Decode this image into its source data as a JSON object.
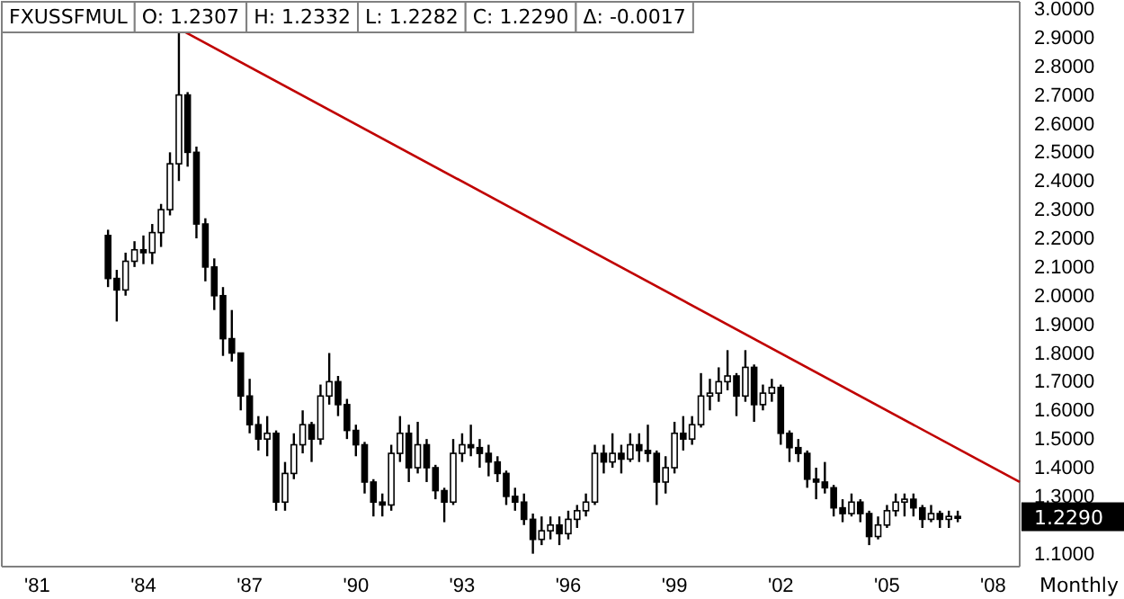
{
  "chart_data": {
    "type": "candlestick",
    "title": "FXUSSFMUL",
    "annotations": [
      "O: 1.2307",
      "H: 1.2332",
      "L: 1.2282",
      "C: 1.2290",
      "Δ: -0.0017",
      "Monthly",
      "1.2290"
    ],
    "xlim": [
      "1980-01",
      "2008-10"
    ],
    "xticks": [
      {
        "value": "1981-01",
        "label": "'81"
      },
      {
        "value": "1984-01",
        "label": "'84"
      },
      {
        "value": "1987-01",
        "label": "'87"
      },
      {
        "value": "1990-01",
        "label": "'90"
      },
      {
        "value": "1993-01",
        "label": "'93"
      },
      {
        "value": "1996-01",
        "label": "'96"
      },
      {
        "value": "1999-01",
        "label": "'99"
      },
      {
        "value": "2002-01",
        "label": "'02"
      },
      {
        "value": "2005-01",
        "label": "'05"
      },
      {
        "value": "2008-01",
        "label": "'08"
      }
    ],
    "ylim": [
      1.055,
      3.025
    ],
    "yticks": [
      {
        "value": 1.1,
        "label": "1.1000"
      },
      {
        "value": 1.3,
        "label": "1.3000"
      },
      {
        "value": 1.4,
        "label": "1.4000"
      },
      {
        "value": 1.5,
        "label": "1.5000"
      },
      {
        "value": 1.6,
        "label": "1.6000"
      },
      {
        "value": 1.7,
        "label": "1.7000"
      },
      {
        "value": 1.8,
        "label": "1.8000"
      },
      {
        "value": 1.9,
        "label": "1.9000"
      },
      {
        "value": 2.0,
        "label": "2.0000"
      },
      {
        "value": 2.1,
        "label": "2.1000"
      },
      {
        "value": 2.2,
        "label": "2.2000"
      },
      {
        "value": 2.3,
        "label": "2.3000"
      },
      {
        "value": 2.4,
        "label": "2.4000"
      },
      {
        "value": 2.5,
        "label": "2.5000"
      },
      {
        "value": 2.6,
        "label": "2.6000"
      },
      {
        "value": 2.7,
        "label": "2.7000"
      },
      {
        "value": 2.8,
        "label": "2.8000"
      },
      {
        "value": 2.9,
        "label": "2.9000"
      },
      {
        "value": 3.0,
        "label": "3.0000"
      }
    ],
    "grid": false,
    "series": [
      {
        "type": "line",
        "color": "#c00000",
        "x": [
          "1985-03",
          "2008-10"
        ],
        "values": [
          2.92,
          1.35
        ]
      },
      {
        "color": "#000000",
        "x": [
          "1983-01",
          "1983-04",
          "1983-07",
          "1983-10",
          "1984-01",
          "1984-04",
          "1984-07",
          "1984-10",
          "1985-01",
          "1985-04",
          "1985-07",
          "1985-10",
          "1986-01",
          "1986-04",
          "1986-07",
          "1986-10",
          "1987-01",
          "1987-04",
          "1987-07",
          "1987-10",
          "1988-01",
          "1988-04",
          "1988-07",
          "1988-10",
          "1989-01",
          "1989-04",
          "1989-07",
          "1989-10",
          "1990-01",
          "1990-04",
          "1990-07",
          "1990-10",
          "1991-01",
          "1991-04",
          "1991-07",
          "1991-10",
          "1992-01",
          "1992-04",
          "1992-07",
          "1992-10",
          "1993-01",
          "1993-04",
          "1993-07",
          "1993-10",
          "1994-01",
          "1994-04",
          "1994-07",
          "1994-10",
          "1995-01",
          "1995-04",
          "1995-07",
          "1995-10",
          "1996-01",
          "1996-04",
          "1996-07",
          "1996-10",
          "1997-01",
          "1997-04",
          "1997-07",
          "1997-10",
          "1998-01",
          "1998-04",
          "1998-07",
          "1998-10",
          "1999-01",
          "1999-04",
          "1999-07",
          "1999-10",
          "2000-01",
          "2000-04",
          "2000-07",
          "2000-10",
          "2001-01",
          "2001-04",
          "2001-07",
          "2001-10",
          "2002-01",
          "2002-04",
          "2002-07",
          "2002-10",
          "2003-01",
          "2003-04",
          "2003-07",
          "2003-10",
          "2004-01",
          "2004-04",
          "2004-07",
          "2004-10",
          "2005-01",
          "2005-04",
          "2005-07",
          "2005-10",
          "2006-01",
          "2006-04",
          "2006-07",
          "2006-10",
          "2007-01"
        ],
        "ohlc": [
          [
            2.21,
            2.23,
            2.03,
            2.06
          ],
          [
            2.06,
            2.09,
            1.91,
            2.02
          ],
          [
            2.02,
            2.15,
            2.0,
            2.12
          ],
          [
            2.12,
            2.19,
            2.1,
            2.16
          ],
          [
            2.16,
            2.21,
            2.11,
            2.15
          ],
          [
            2.15,
            2.25,
            2.11,
            2.22
          ],
          [
            2.22,
            2.32,
            2.17,
            2.3
          ],
          [
            2.3,
            2.5,
            2.28,
            2.46
          ],
          [
            2.46,
            2.93,
            2.4,
            2.7
          ],
          [
            2.7,
            2.71,
            2.45,
            2.5
          ],
          [
            2.5,
            2.52,
            2.2,
            2.25
          ],
          [
            2.25,
            2.27,
            2.05,
            2.1
          ],
          [
            2.1,
            2.13,
            1.95,
            2.0
          ],
          [
            2.0,
            2.03,
            1.79,
            1.85
          ],
          [
            1.85,
            1.95,
            1.77,
            1.8
          ],
          [
            1.8,
            1.8,
            1.6,
            1.65
          ],
          [
            1.65,
            1.71,
            1.52,
            1.55
          ],
          [
            1.55,
            1.58,
            1.46,
            1.5
          ],
          [
            1.5,
            1.58,
            1.44,
            1.52
          ],
          [
            1.52,
            1.53,
            1.25,
            1.28
          ],
          [
            1.28,
            1.42,
            1.25,
            1.38
          ],
          [
            1.38,
            1.52,
            1.36,
            1.48
          ],
          [
            1.48,
            1.6,
            1.45,
            1.55
          ],
          [
            1.55,
            1.56,
            1.42,
            1.5
          ],
          [
            1.5,
            1.69,
            1.48,
            1.65
          ],
          [
            1.65,
            1.8,
            1.62,
            1.7
          ],
          [
            1.7,
            1.72,
            1.58,
            1.62
          ],
          [
            1.62,
            1.64,
            1.5,
            1.53
          ],
          [
            1.53,
            1.55,
            1.44,
            1.48
          ],
          [
            1.48,
            1.49,
            1.31,
            1.35
          ],
          [
            1.35,
            1.36,
            1.23,
            1.28
          ],
          [
            1.28,
            1.31,
            1.23,
            1.27
          ],
          [
            1.27,
            1.48,
            1.25,
            1.45
          ],
          [
            1.45,
            1.58,
            1.42,
            1.52
          ],
          [
            1.52,
            1.55,
            1.35,
            1.4
          ],
          [
            1.4,
            1.56,
            1.38,
            1.48
          ],
          [
            1.48,
            1.5,
            1.35,
            1.4
          ],
          [
            1.4,
            1.41,
            1.29,
            1.32
          ],
          [
            1.32,
            1.33,
            1.21,
            1.28
          ],
          [
            1.28,
            1.5,
            1.27,
            1.45
          ],
          [
            1.45,
            1.52,
            1.42,
            1.48
          ],
          [
            1.48,
            1.55,
            1.44,
            1.47
          ],
          [
            1.47,
            1.5,
            1.4,
            1.45
          ],
          [
            1.45,
            1.48,
            1.37,
            1.42
          ],
          [
            1.42,
            1.44,
            1.35,
            1.38
          ],
          [
            1.38,
            1.39,
            1.27,
            1.3
          ],
          [
            1.3,
            1.33,
            1.25,
            1.28
          ],
          [
            1.28,
            1.31,
            1.2,
            1.22
          ],
          [
            1.22,
            1.24,
            1.1,
            1.15
          ],
          [
            1.15,
            1.23,
            1.13,
            1.18
          ],
          [
            1.18,
            1.23,
            1.15,
            1.2
          ],
          [
            1.2,
            1.23,
            1.13,
            1.17
          ],
          [
            1.17,
            1.25,
            1.15,
            1.22
          ],
          [
            1.22,
            1.27,
            1.19,
            1.25
          ],
          [
            1.25,
            1.31,
            1.23,
            1.28
          ],
          [
            1.28,
            1.48,
            1.27,
            1.45
          ],
          [
            1.45,
            1.48,
            1.38,
            1.42
          ],
          [
            1.42,
            1.52,
            1.4,
            1.45
          ],
          [
            1.45,
            1.48,
            1.38,
            1.43
          ],
          [
            1.43,
            1.52,
            1.42,
            1.48
          ],
          [
            1.48,
            1.52,
            1.42,
            1.46
          ],
          [
            1.46,
            1.55,
            1.42,
            1.45
          ],
          [
            1.45,
            1.46,
            1.27,
            1.35
          ],
          [
            1.35,
            1.44,
            1.31,
            1.4
          ],
          [
            1.4,
            1.56,
            1.38,
            1.52
          ],
          [
            1.52,
            1.58,
            1.46,
            1.5
          ],
          [
            1.5,
            1.58,
            1.48,
            1.55
          ],
          [
            1.55,
            1.73,
            1.54,
            1.65
          ],
          [
            1.65,
            1.71,
            1.6,
            1.66
          ],
          [
            1.66,
            1.75,
            1.63,
            1.7
          ],
          [
            1.7,
            1.81,
            1.67,
            1.72
          ],
          [
            1.72,
            1.73,
            1.58,
            1.65
          ],
          [
            1.65,
            1.81,
            1.63,
            1.75
          ],
          [
            1.75,
            1.76,
            1.56,
            1.62
          ],
          [
            1.62,
            1.69,
            1.6,
            1.66
          ],
          [
            1.66,
            1.71,
            1.63,
            1.68
          ],
          [
            1.68,
            1.69,
            1.48,
            1.52
          ],
          [
            1.52,
            1.53,
            1.42,
            1.47
          ],
          [
            1.47,
            1.5,
            1.42,
            1.45
          ],
          [
            1.45,
            1.46,
            1.33,
            1.36
          ],
          [
            1.36,
            1.4,
            1.29,
            1.35
          ],
          [
            1.35,
            1.42,
            1.31,
            1.33
          ],
          [
            1.33,
            1.34,
            1.23,
            1.26
          ],
          [
            1.26,
            1.29,
            1.21,
            1.24
          ],
          [
            1.24,
            1.31,
            1.23,
            1.28
          ],
          [
            1.28,
            1.29,
            1.21,
            1.24
          ],
          [
            1.24,
            1.25,
            1.13,
            1.16
          ],
          [
            1.16,
            1.23,
            1.15,
            1.2
          ],
          [
            1.2,
            1.27,
            1.19,
            1.25
          ],
          [
            1.25,
            1.31,
            1.23,
            1.28
          ],
          [
            1.28,
            1.31,
            1.23,
            1.29
          ],
          [
            1.29,
            1.31,
            1.23,
            1.26
          ],
          [
            1.26,
            1.27,
            1.19,
            1.22
          ],
          [
            1.22,
            1.27,
            1.21,
            1.24
          ],
          [
            1.24,
            1.25,
            1.19,
            1.22
          ],
          [
            1.22,
            1.25,
            1.19,
            1.23
          ],
          [
            1.23,
            1.25,
            1.21,
            1.229
          ]
        ]
      }
    ]
  }
}
